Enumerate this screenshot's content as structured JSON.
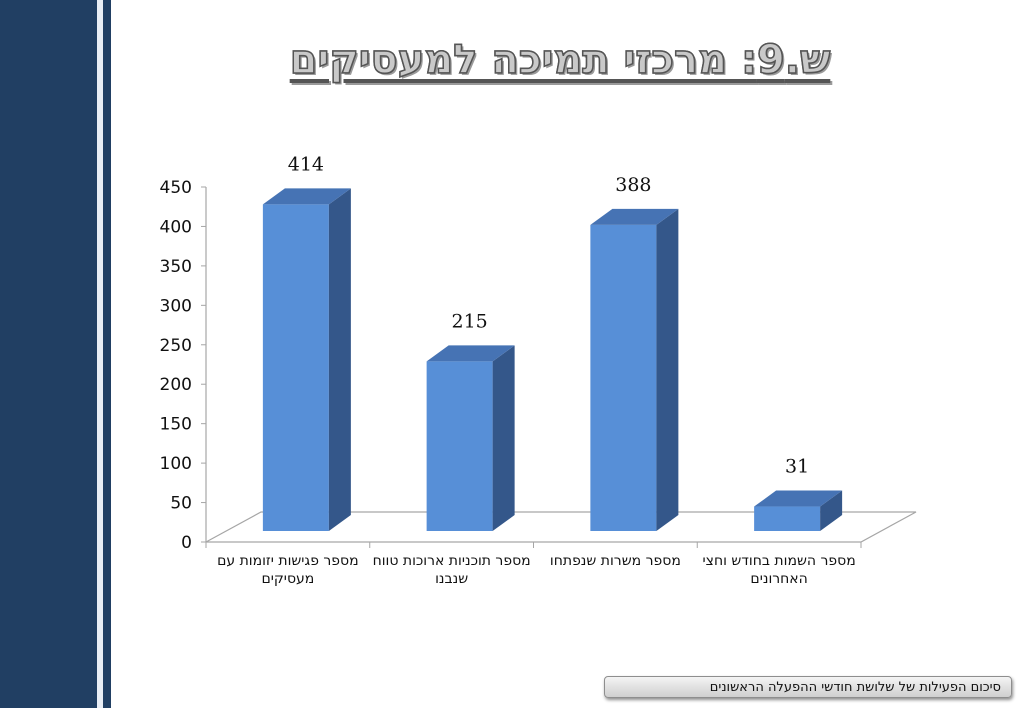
{
  "title": "ש.9: מרכזי תמיכה למעסיקים",
  "footer": "סיכום הפעילות של שלושת חודשי ההפעלה הראשונים",
  "colors": {
    "sidebar": "#213f63",
    "bar_front": "#578fd7",
    "bar_side": "#34578a",
    "bar_top": "#4673b4"
  },
  "chart_data": {
    "type": "bar",
    "categories": [
      "מספר פגישות יזומות עם מעסיקים",
      "מספר תוכניות ארוכות טווח שנבנו",
      "מספר משרות שנפתחו",
      "מספר השמות בחודש וחצי האחרונים"
    ],
    "values": [
      414,
      215,
      388,
      31
    ],
    "data_labels": [
      "414",
      "215",
      "388",
      "31"
    ],
    "ylim": [
      0,
      450
    ],
    "yticks": [
      "0",
      "50",
      "100",
      "150",
      "200",
      "250",
      "300",
      "350",
      "400",
      "450"
    ],
    "grid": false,
    "legend": "none",
    "style": "3d-column"
  }
}
